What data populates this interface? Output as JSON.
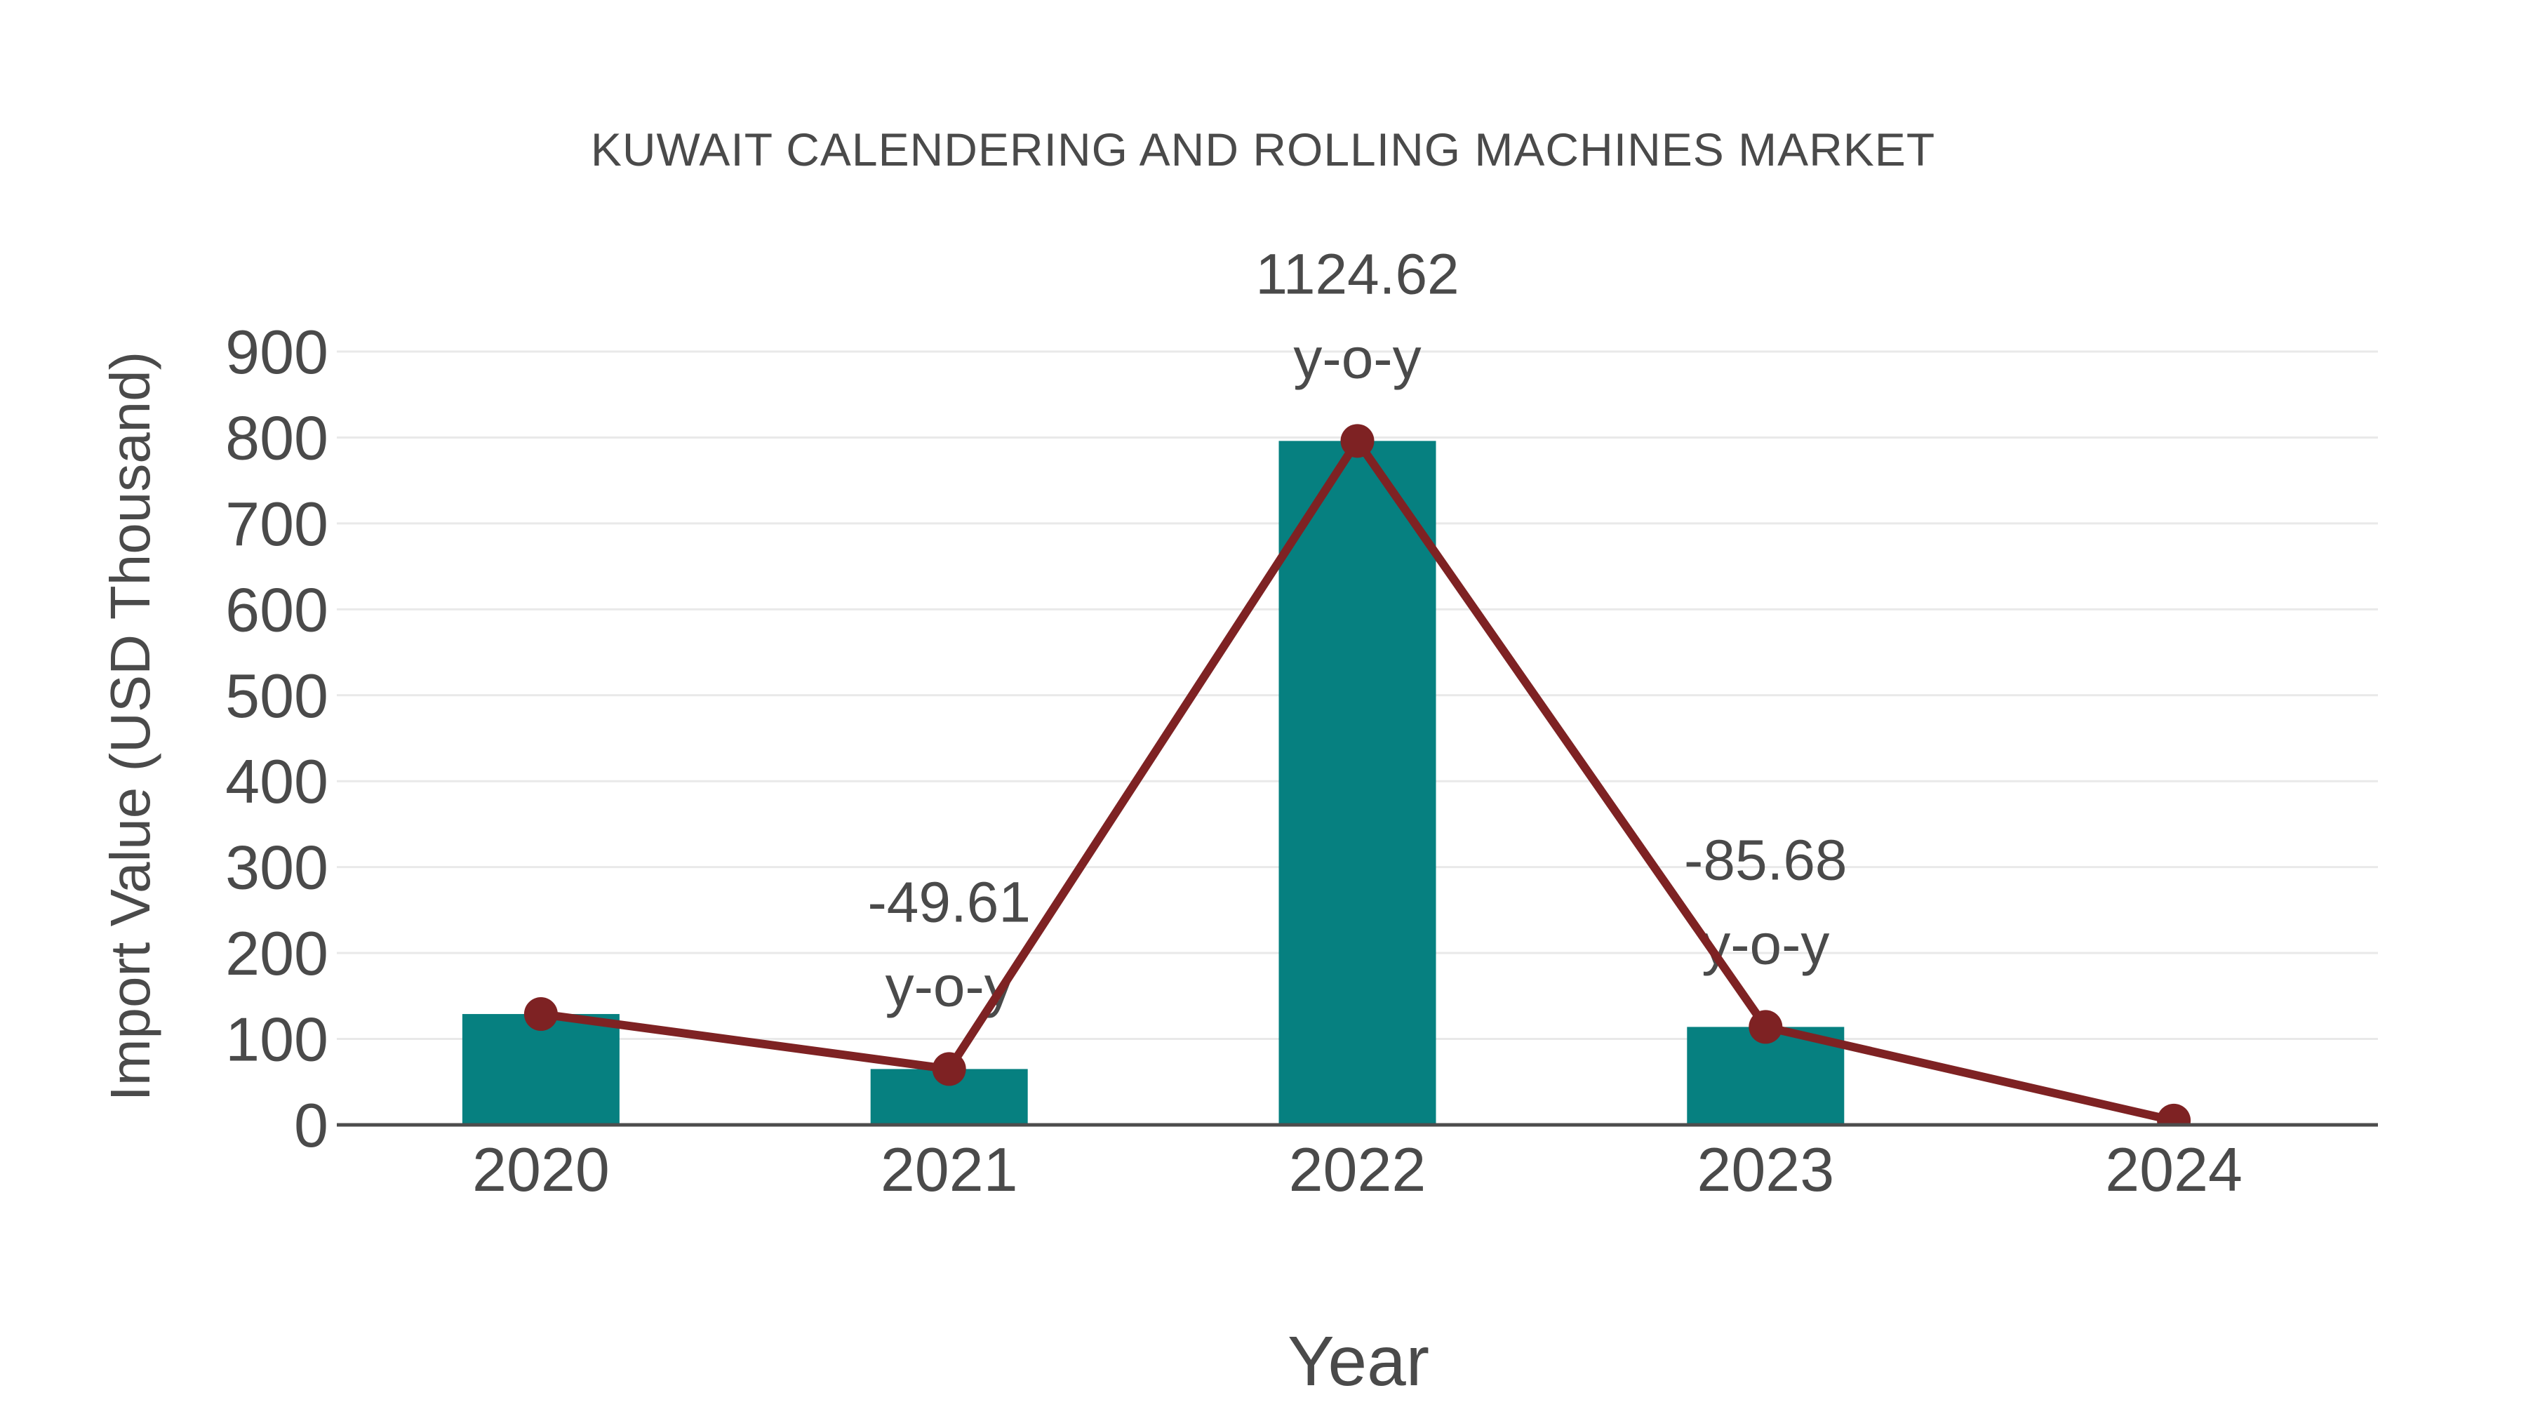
{
  "chart_data": {
    "type": "bar",
    "title": "KUWAIT CALENDERING AND ROLLING MACHINES MARKET",
    "xlabel": "Year",
    "ylabel": "Import Value (USD Thousand)",
    "categories": [
      "2020",
      "2021",
      "2022",
      "2023",
      "2024"
    ],
    "series": [
      {
        "name": "Import Value bars",
        "type": "bar",
        "values": [
          129,
          65,
          796,
          114,
          null
        ]
      },
      {
        "name": "Import Value trend line",
        "type": "line",
        "values": [
          129,
          65,
          796,
          114,
          5
        ]
      }
    ],
    "annotations": [
      {
        "category": "2021",
        "text_lines": [
          "-49.61",
          "y-o-y"
        ]
      },
      {
        "category": "2022",
        "text_lines": [
          "1124.62",
          "y-o-y"
        ]
      },
      {
        "category": "2023",
        "text_lines": [
          "-85.68",
          "y-o-y"
        ]
      }
    ],
    "ylim": [
      0,
      900
    ],
    "ytick_step": 100,
    "yticks": [
      "0",
      "100",
      "200",
      "300",
      "400",
      "500",
      "600",
      "700",
      "800",
      "900"
    ],
    "grid": true,
    "legend": false,
    "colors": {
      "bar": "#068080",
      "line": "#7E2223",
      "text": "#4a4a4a",
      "grid": "#e9e9e9",
      "axis": "#4d4d4d",
      "background": "#ffffff"
    }
  }
}
